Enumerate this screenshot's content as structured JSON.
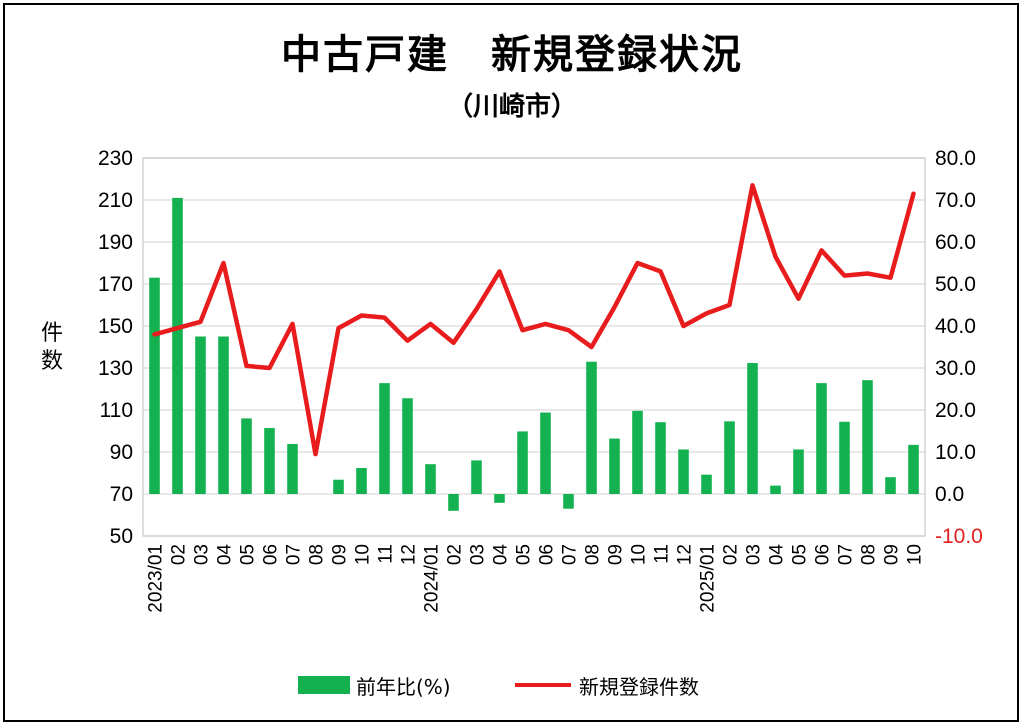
{
  "title": "中古戸建　新規登録状況",
  "subtitle": "（川崎市）",
  "ylabel": "件数",
  "legend": {
    "bar_label": "前年比(%)",
    "line_label": "新規登録件数"
  },
  "colors": {
    "bar": "#14b151",
    "line": "#e81c1c",
    "negative_tick": "#e02020",
    "grid": "#d9d9d9"
  },
  "chart_data": {
    "type": "bar",
    "categories": [
      "2023/01",
      "02",
      "03",
      "04",
      "05",
      "06",
      "07",
      "08",
      "09",
      "10",
      "11",
      "12",
      "2024/01",
      "02",
      "03",
      "04",
      "05",
      "06",
      "07",
      "08",
      "09",
      "10",
      "11",
      "12",
      "2025/01",
      "02",
      "03",
      "04",
      "05",
      "06",
      "07",
      "08",
      "09",
      "10"
    ],
    "series": [
      {
        "name": "前年比(%)",
        "type": "bar",
        "axis": "right",
        "values": [
          51.5,
          70.5,
          37.5,
          37.5,
          18.0,
          15.7,
          11.9,
          null,
          3.4,
          6.2,
          26.4,
          22.8,
          7.1,
          -4.0,
          8.0,
          -2.1,
          14.9,
          19.4,
          -3.5,
          31.5,
          13.2,
          19.8,
          17.1,
          10.6,
          4.6,
          17.3,
          31.2,
          2.0,
          10.6,
          26.4,
          17.2,
          27.1,
          4.0,
          11.7
        ]
      },
      {
        "name": "新規登録件数",
        "type": "line",
        "axis": "left",
        "values": [
          146,
          149,
          152,
          180,
          131,
          130,
          151,
          89,
          149,
          155,
          154,
          143,
          151,
          142,
          158,
          176,
          148,
          151,
          148,
          140,
          159,
          180,
          176,
          150,
          156,
          160,
          217,
          183,
          163,
          186,
          174,
          175,
          173,
          213
        ]
      }
    ],
    "y_left": {
      "min": 50,
      "max": 230,
      "step": 20,
      "ticks": [
        "230",
        "210",
        "190",
        "170",
        "150",
        "130",
        "110",
        "90",
        "70",
        "50"
      ]
    },
    "y_right": {
      "min": -10,
      "max": 80,
      "step": 10,
      "ticks": [
        "80.0",
        "70.0",
        "60.0",
        "50.0",
        "40.0",
        "30.0",
        "20.0",
        "10.0",
        "0.0",
        "-10.0"
      ]
    },
    "grid": true,
    "legend_position": "bottom"
  }
}
